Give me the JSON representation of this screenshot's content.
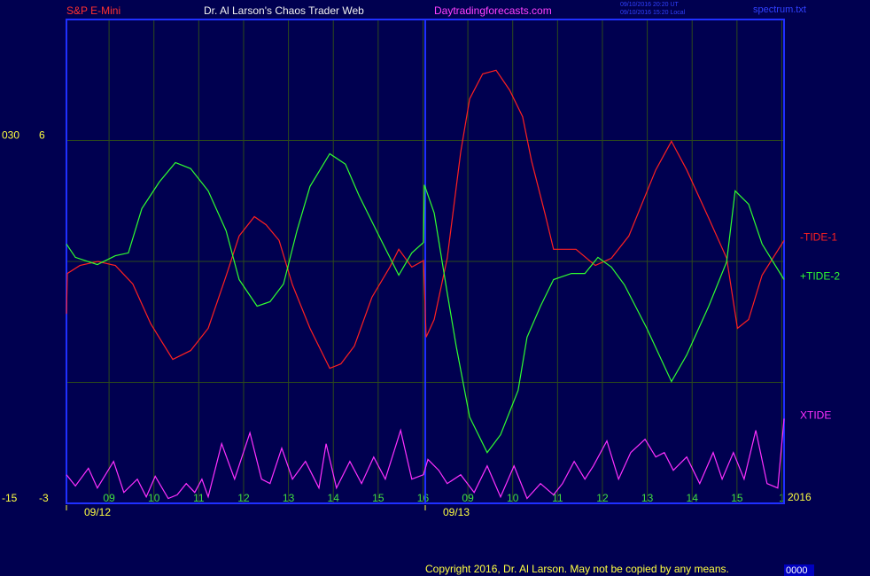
{
  "chart_data": {
    "type": "line",
    "symbol": "S&P E-Mini",
    "title": "Dr. Al Larson's Chaos Trader Web",
    "website": "Daytradingforecasts.com",
    "timestamps": [
      "09/10/2016 20:20 UT",
      "09/10/2016 15:20 Local"
    ],
    "file": "spectrum.txt",
    "copyright": "Copyright 2016, Dr. Al Larson. May not be copied by any means.",
    "footer_code": "0000",
    "year": "2016",
    "xlim": [
      0,
      16
    ],
    "xticks": [
      {
        "value": 0.95,
        "label": "09"
      },
      {
        "value": 1.95,
        "label": "10"
      },
      {
        "value": 2.95,
        "label": "11"
      },
      {
        "value": 3.95,
        "label": "12"
      },
      {
        "value": 4.95,
        "label": "13"
      },
      {
        "value": 5.95,
        "label": "14"
      },
      {
        "value": 6.95,
        "label": "15"
      },
      {
        "value": 7.95,
        "label": "16"
      },
      {
        "value": 8.95,
        "label": "09"
      },
      {
        "value": 9.95,
        "label": "10"
      },
      {
        "value": 10.95,
        "label": "11"
      },
      {
        "value": 11.95,
        "label": "12"
      },
      {
        "value": 12.95,
        "label": "13"
      },
      {
        "value": 13.95,
        "label": "14"
      },
      {
        "value": 14.95,
        "label": "15"
      },
      {
        "value": 15.95,
        "label": "1"
      }
    ],
    "day_ticks": [
      {
        "value": 0,
        "label": "09/12"
      },
      {
        "value": 8,
        "label": "09/13"
      }
    ],
    "ylim": [
      -3,
      9
    ],
    "yticks": [
      -3,
      6
    ],
    "y_gridlines": [
      0,
      3,
      6
    ],
    "y2lim": [
      -15,
      45
    ],
    "y2ticks": [
      -15,
      {
        "value": 30,
        "label": "030"
      }
    ],
    "grid": true,
    "series": [
      {
        "name": "-TIDE-1",
        "color": "#ff2020",
        "x": [
          0,
          0.02,
          0.3,
          0.7,
          1.09,
          1.48,
          1.88,
          2.37,
          2.77,
          3.16,
          3.56,
          3.85,
          4.19,
          4.45,
          4.74,
          5.04,
          5.43,
          5.87,
          6.12,
          6.42,
          6.81,
          7.21,
          7.41,
          7.7,
          7.96,
          8.02,
          8.2,
          8.49,
          8.79,
          8.99,
          9.28,
          9.58,
          9.88,
          10.17,
          10.37,
          10.67,
          10.86,
          11.36,
          11.79,
          12.15,
          12.54,
          13.14,
          13.49,
          13.83,
          14.32,
          14.72,
          14.96,
          15.21,
          15.51,
          16
        ],
        "values": [
          1.7,
          2.7,
          2.9,
          3.0,
          2.9,
          2.44,
          1.45,
          0.57,
          0.79,
          1.34,
          2.64,
          3.63,
          4.11,
          3.91,
          3.52,
          2.42,
          1.34,
          0.35,
          0.46,
          0.9,
          2.11,
          2.86,
          3.3,
          2.86,
          3.02,
          1.12,
          1.56,
          3.08,
          5.71,
          7.03,
          7.65,
          7.74,
          7.25,
          6.59,
          5.49,
          4.18,
          3.3,
          3.3,
          2.9,
          3.08,
          3.63,
          5.27,
          5.98,
          5.27,
          4.07,
          3.08,
          1.34,
          1.56,
          2.66,
          3.52
        ]
      },
      {
        "name": "+TIDE-2",
        "color": "#30ff30",
        "x": [
          0,
          0.2,
          0.69,
          1.09,
          1.38,
          1.68,
          2.07,
          2.43,
          2.77,
          3.16,
          3.56,
          3.85,
          4.25,
          4.54,
          4.84,
          5.14,
          5.43,
          5.87,
          6.22,
          6.52,
          7.01,
          7.41,
          7.7,
          7.96,
          7.98,
          8.2,
          8.49,
          8.69,
          8.99,
          9.38,
          9.68,
          10.07,
          10.27,
          10.57,
          10.86,
          11.26,
          11.56,
          11.85,
          12.15,
          12.44,
          12.94,
          13.49,
          13.83,
          14.32,
          14.72,
          14.91,
          15.21,
          15.51,
          16
        ],
        "values": [
          3.43,
          3.1,
          2.92,
          3.14,
          3.21,
          4.31,
          4.97,
          5.45,
          5.3,
          4.75,
          3.76,
          2.55,
          1.89,
          2.0,
          2.44,
          3.76,
          4.86,
          5.67,
          5.41,
          4.64,
          3.54,
          2.66,
          3.21,
          3.47,
          4.9,
          4.2,
          2.22,
          0.9,
          -0.86,
          -1.74,
          -1.3,
          -0.2,
          1.12,
          1.89,
          2.55,
          2.7,
          2.7,
          3.1,
          2.86,
          2.42,
          1.34,
          0.02,
          0.68,
          1.89,
          2.99,
          4.75,
          4.42,
          3.43,
          2.55
        ]
      },
      {
        "name": "XTIDE",
        "color": "#ff30ff",
        "x": [
          0,
          0.2,
          0.49,
          0.69,
          1.05,
          1.28,
          1.58,
          1.78,
          1.98,
          2.27,
          2.47,
          2.67,
          2.86,
          3.02,
          3.16,
          3.46,
          3.75,
          4.09,
          4.35,
          4.54,
          4.8,
          5.04,
          5.33,
          5.63,
          5.79,
          6.02,
          6.32,
          6.58,
          6.85,
          7.11,
          7.45,
          7.7,
          7.96,
          8.06,
          8.3,
          8.49,
          8.79,
          9.09,
          9.38,
          9.68,
          9.98,
          10.27,
          10.57,
          10.86,
          11.06,
          11.32,
          11.56,
          11.75,
          12.05,
          12.31,
          12.58,
          12.9,
          13.14,
          13.33,
          13.53,
          13.83,
          14.12,
          14.42,
          14.62,
          14.87,
          15.11,
          15.37,
          15.62,
          15.86,
          16
        ],
        "values": [
          -2.29,
          -2.57,
          -2.13,
          -2.62,
          -1.96,
          -2.73,
          -2.4,
          -2.84,
          -2.33,
          -2.88,
          -2.79,
          -2.51,
          -2.73,
          -2.4,
          -2.84,
          -1.52,
          -2.4,
          -1.25,
          -2.4,
          -2.51,
          -1.63,
          -2.4,
          -1.96,
          -2.62,
          -1.52,
          -2.62,
          -1.96,
          -2.51,
          -1.85,
          -2.4,
          -1.19,
          -2.4,
          -2.29,
          -1.91,
          -2.18,
          -2.51,
          -2.29,
          -2.73,
          -2.07,
          -2.84,
          -2.07,
          -2.88,
          -2.51,
          -2.79,
          -2.51,
          -1.96,
          -2.4,
          -2.07,
          -1.45,
          -2.4,
          -1.74,
          -1.41,
          -1.85,
          -1.74,
          -2.18,
          -1.85,
          -2.51,
          -1.74,
          -2.4,
          -1.74,
          -2.4,
          -1.19,
          -2.51,
          -2.62,
          -0.9
        ]
      }
    ]
  }
}
